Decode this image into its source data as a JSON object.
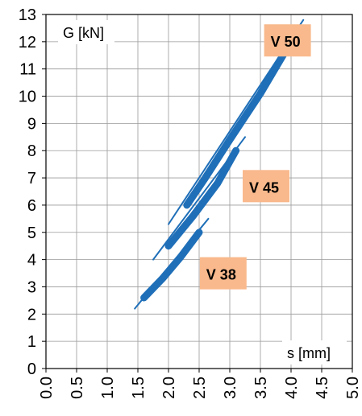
{
  "chart_data": {
    "type": "line",
    "ylabel": "G [kN]",
    "xlabel": "s [mm]",
    "xlim": [
      0.0,
      5.0
    ],
    "ylim": [
      0,
      13
    ],
    "x_ticks": [
      "0.0",
      "0.5",
      "1.0",
      "1.5",
      "2.0",
      "2.5",
      "3.0",
      "3.5",
      "4.0",
      "4.5",
      "5.0"
    ],
    "y_ticks": [
      "0",
      "1",
      "2",
      "3",
      "4",
      "5",
      "6",
      "7",
      "8",
      "9",
      "10",
      "11",
      "12",
      "13"
    ],
    "grid": true,
    "series_color": "#1f6fb8",
    "label_fill": "#f9b98c",
    "series": [
      {
        "name": "V 50",
        "points": [
          [
            2.3,
            6.0
          ],
          [
            2.6,
            7.0
          ],
          [
            3.0,
            8.4
          ],
          [
            3.5,
            10.1
          ],
          [
            4.0,
            12.0
          ]
        ],
        "trend": [
          [
            2.0,
            5.3
          ],
          [
            4.2,
            12.8
          ]
        ]
      },
      {
        "name": "V 45",
        "points": [
          [
            2.0,
            4.5
          ],
          [
            2.4,
            5.6
          ],
          [
            2.8,
            6.8
          ],
          [
            3.1,
            8.0
          ]
        ],
        "trend": [
          [
            1.75,
            4.0
          ],
          [
            3.25,
            8.5
          ]
        ]
      },
      {
        "name": "V 38",
        "points": [
          [
            1.6,
            2.6
          ],
          [
            1.9,
            3.3
          ],
          [
            2.2,
            4.1
          ],
          [
            2.5,
            5.0
          ]
        ],
        "trend": [
          [
            1.45,
            2.2
          ],
          [
            2.65,
            5.5
          ]
        ]
      }
    ]
  }
}
